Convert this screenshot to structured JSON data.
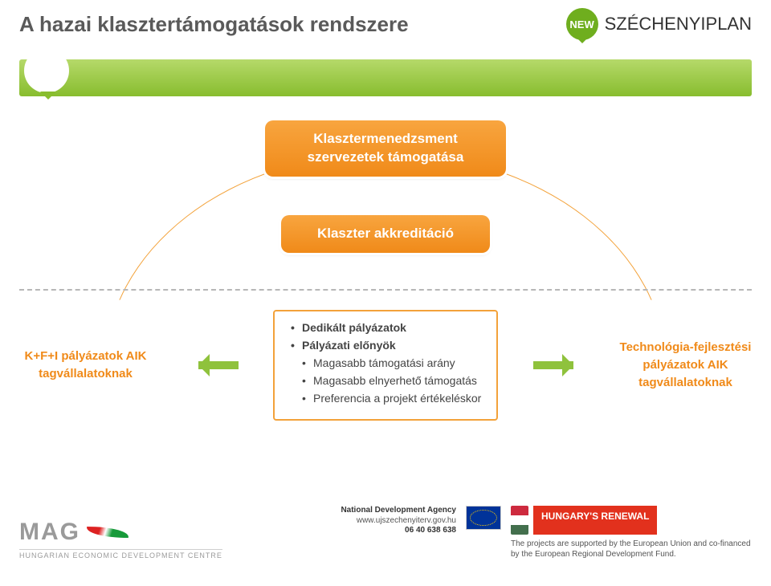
{
  "page": {
    "title": "A hazai klasztertámogatások rendszere",
    "brand_badge": "NEW",
    "brand_main": "SZÉCHENYI",
    "brand_sub": "PLAN"
  },
  "diagram": {
    "top_box": "Klasztermenedzsment szervezetek támogatása",
    "mid_box": "Klaszter akkreditáció",
    "left_box": "K+F+I pályázatok AIK tagvállalatoknak",
    "right_box": "Technológia-fejlesztési pályázatok AIK tagvállalatoknak",
    "card": {
      "h1": "Dedikált pályázatok",
      "h2": "Pályázati előnyök",
      "b1": "Magasabb támogatási arány",
      "b2": "Magasabb elnyerhető támogatás",
      "b3": "Preferencia a projekt értékeléskor"
    },
    "colors": {
      "orange": "#f08a19",
      "orange_border": "#f3a23a",
      "green_arrow": "#8fc23c",
      "dash": "#b7b7b7",
      "band_top": "#b6d96a",
      "band_bot": "#88bd2e"
    }
  },
  "footer": {
    "mag_logo": "MAG",
    "mag_sub": "HUNGARIAN ECONOMIC DEVELOPMENT CENTRE",
    "agency": "National Development Agency",
    "url": "www.ujszechenyiterv.gov.hu",
    "phone": "06 40 638 638",
    "renewal": "HUNGARY'S RENEWAL",
    "funding": "The projects are supported by the European Union and co-financed by the European Regional Development Fund."
  }
}
